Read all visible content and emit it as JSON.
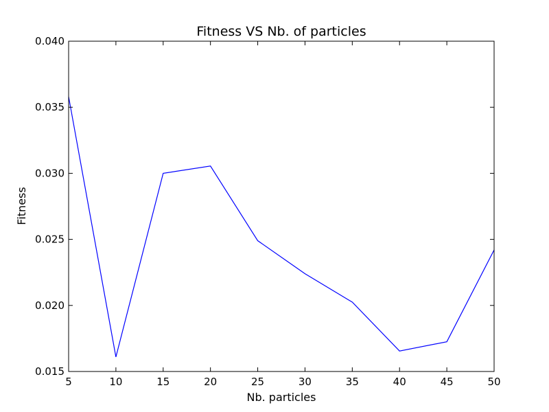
{
  "chart_data": {
    "type": "line",
    "title": "Fitness VS Nb. of particles",
    "xlabel": "Nb. particles",
    "ylabel": "Fitness",
    "xlim": [
      5,
      50
    ],
    "ylim": [
      0.015,
      0.04
    ],
    "xticks": [
      "5",
      "10",
      "15",
      "20",
      "25",
      "30",
      "35",
      "40",
      "45",
      "50"
    ],
    "yticks": [
      "0.015",
      "0.020",
      "0.025",
      "0.030",
      "0.035",
      "0.040"
    ],
    "grid": false,
    "series": [
      {
        "color": "#0000ff",
        "x": [
          5,
          10,
          15,
          20,
          25,
          30,
          35,
          40,
          45,
          50
        ],
        "y": [
          0.0358,
          0.0161,
          0.03,
          0.03055,
          0.0249,
          0.0224,
          0.02025,
          0.01655,
          0.01725,
          0.0242
        ]
      }
    ]
  }
}
